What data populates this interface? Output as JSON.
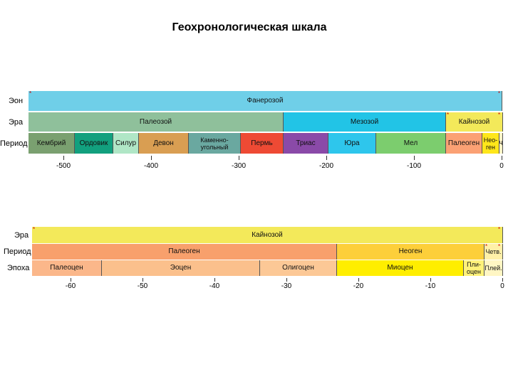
{
  "title": "Геохронологическая шкала",
  "top_scale": {
    "labels": {
      "eon": "Эон",
      "era": "Эра",
      "period": "Период"
    },
    "eon": [
      {
        "name": "Фанерозой",
        "color": "#6fcfe8"
      }
    ],
    "eras": [
      {
        "name": "Палеозой",
        "color": "#8fc09b"
      },
      {
        "name": "Мезозой",
        "color": "#22c4e6"
      },
      {
        "name": "Кайнозой",
        "color": "#f3e95a"
      }
    ],
    "periods": [
      {
        "name": "Кембрий",
        "color": "#7aa070"
      },
      {
        "name": "Ордовик",
        "color": "#12a07e"
      },
      {
        "name": "Силур",
        "color": "#b0e6c6"
      },
      {
        "name": "Девон",
        "color": "#d99e52"
      },
      {
        "name": "Каменно-\nугольный",
        "color": "#6aa8a0"
      },
      {
        "name": "Пермь",
        "color": "#ee4a34"
      },
      {
        "name": "Триас",
        "color": "#8a4aa8"
      },
      {
        "name": "Юра",
        "color": "#2ec6ec"
      },
      {
        "name": "Мел",
        "color": "#7ccd6e"
      },
      {
        "name": "Палеоген",
        "color": "#fba174"
      },
      {
        "name": "Нео-\nген",
        "color": "#ffe61a"
      },
      {
        "name": "Ч",
        "color": "#fff4c8"
      }
    ],
    "ticks": [
      "-500",
      "-400",
      "-300",
      "-200",
      "-100",
      "0"
    ]
  },
  "bottom_scale": {
    "labels": {
      "era": "Эра",
      "period": "Период",
      "epoch": "Эпоха"
    },
    "era": [
      {
        "name": "Кайнозой",
        "color": "#f3e95a"
      }
    ],
    "periods": [
      {
        "name": "Палеоген",
        "color": "#f8a06c"
      },
      {
        "name": "Неоген",
        "color": "#fdcf3a"
      },
      {
        "name": "Четв.",
        "color": "#fff0a8"
      }
    ],
    "epochs": [
      {
        "name": "Палеоцен",
        "color": "#fbb78a"
      },
      {
        "name": "Эоцен",
        "color": "#fbc08c"
      },
      {
        "name": "Олигоцен",
        "color": "#fcc896"
      },
      {
        "name": "Миоцен",
        "color": "#ffee00"
      },
      {
        "name": "Пли-\nоцен",
        "color": "#fff27a"
      },
      {
        "name": "Плей.",
        "color": "#fff6c4"
      }
    ],
    "ticks": [
      "-60",
      "-50",
      "-40",
      "-30",
      "-20",
      "-10",
      "0"
    ]
  }
}
